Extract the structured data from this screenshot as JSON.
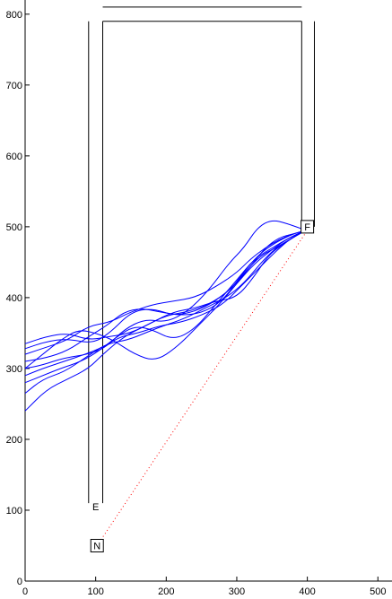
{
  "chart_data": {
    "type": "line",
    "xlim": [
      0,
      520
    ],
    "ylim": [
      0,
      820
    ],
    "xticks": [
      0,
      100,
      200,
      300,
      400,
      500
    ],
    "yticks": [
      0,
      100,
      200,
      300,
      400,
      500,
      600,
      700,
      800
    ],
    "grid": false,
    "colors": {
      "axes": "#000000",
      "walls": "#000000",
      "trajectories": "#0000ff",
      "reference": "#ff0000"
    },
    "walls": [
      {
        "x": [
          90,
          90
        ],
        "y": [
          110,
          790
        ]
      },
      {
        "x": [
          110,
          110
        ],
        "y": [
          110,
          790
        ]
      },
      {
        "x": [
          110,
          392
        ],
        "y": [
          790,
          790
        ]
      },
      {
        "x": [
          392,
          392
        ],
        "y": [
          500,
          790
        ]
      },
      {
        "x": [
          410,
          410
        ],
        "y": [
          500,
          790
        ]
      },
      {
        "x": [
          110,
          392
        ],
        "y": [
          810,
          810
        ]
      }
    ],
    "markers": [
      {
        "label": "E",
        "x": 100,
        "y": 105,
        "box": false
      },
      {
        "label": "N",
        "x": 102,
        "y": 50,
        "box": true
      },
      {
        "label": "F",
        "x": 400,
        "y": 500,
        "box": true
      }
    ],
    "reference_line": {
      "x": [
        102,
        400
      ],
      "y": [
        50,
        495
      ]
    },
    "series": [
      {
        "x": [
          0,
          30,
          60,
          95,
          120,
          150,
          180,
          210,
          240,
          270,
          300,
          320,
          340,
          360,
          380,
          398
        ],
        "y": [
          328,
          338,
          342,
          335,
          350,
          380,
          385,
          375,
          380,
          395,
          420,
          445,
          470,
          485,
          490,
          495
        ]
      },
      {
        "x": [
          0,
          25,
          55,
          90,
          115,
          140,
          170,
          200,
          230,
          260,
          290,
          310,
          330,
          350,
          370,
          398
        ],
        "y": [
          300,
          305,
          315,
          320,
          330,
          355,
          370,
          365,
          380,
          410,
          450,
          470,
          500,
          510,
          505,
          495
        ]
      },
      {
        "x": [
          0,
          30,
          60,
          90,
          110,
          140,
          170,
          200,
          230,
          260,
          290,
          315,
          335,
          355,
          375,
          398
        ],
        "y": [
          240,
          270,
          285,
          300,
          320,
          345,
          360,
          375,
          380,
          390,
          410,
          440,
          460,
          470,
          482,
          495
        ]
      },
      {
        "x": [
          0,
          25,
          50,
          80,
          105,
          130,
          155,
          180,
          210,
          240,
          270,
          300,
          325,
          350,
          375,
          398
        ],
        "y": [
          280,
          290,
          300,
          310,
          325,
          345,
          360,
          355,
          340,
          355,
          390,
          425,
          455,
          470,
          485,
          495
        ]
      },
      {
        "x": [
          0,
          30,
          60,
          90,
          120,
          150,
          180,
          210,
          240,
          270,
          300,
          325,
          345,
          365,
          385,
          398
        ],
        "y": [
          335,
          345,
          350,
          340,
          345,
          350,
          365,
          380,
          385,
          395,
          400,
          430,
          460,
          475,
          488,
          495
        ]
      },
      {
        "x": [
          0,
          25,
          55,
          85,
          115,
          145,
          170,
          195,
          225,
          255,
          285,
          310,
          335,
          355,
          380,
          398
        ],
        "y": [
          265,
          285,
          295,
          315,
          335,
          340,
          350,
          360,
          370,
          385,
          400,
          420,
          450,
          470,
          485,
          495
        ]
      },
      {
        "x": [
          0,
          30,
          60,
          90,
          115,
          140,
          165,
          190,
          220,
          250,
          280,
          305,
          330,
          355,
          380,
          398
        ],
        "y": [
          310,
          315,
          325,
          345,
          360,
          380,
          385,
          380,
          375,
          378,
          395,
          430,
          460,
          478,
          490,
          495
        ]
      },
      {
        "x": [
          0,
          25,
          50,
          75,
          100,
          125,
          155,
          185,
          215,
          245,
          275,
          300,
          325,
          350,
          375,
          398
        ],
        "y": [
          300,
          320,
          340,
          355,
          350,
          340,
          320,
          310,
          330,
          360,
          390,
          420,
          448,
          468,
          485,
          495
        ]
      },
      {
        "x": [
          0,
          30,
          60,
          90,
          120,
          150,
          180,
          210,
          240,
          270,
          300,
          320,
          340,
          360,
          380,
          398
        ],
        "y": [
          320,
          330,
          340,
          360,
          365,
          380,
          390,
          395,
          400,
          415,
          435,
          455,
          470,
          482,
          490,
          495
        ]
      },
      {
        "x": [
          0,
          25,
          55,
          85,
          110,
          135,
          160,
          190,
          220,
          250,
          280,
          305,
          330,
          355,
          378,
          398
        ],
        "y": [
          290,
          300,
          310,
          320,
          330,
          345,
          350,
          360,
          365,
          375,
          390,
          415,
          440,
          465,
          485,
          495
        ]
      }
    ]
  }
}
